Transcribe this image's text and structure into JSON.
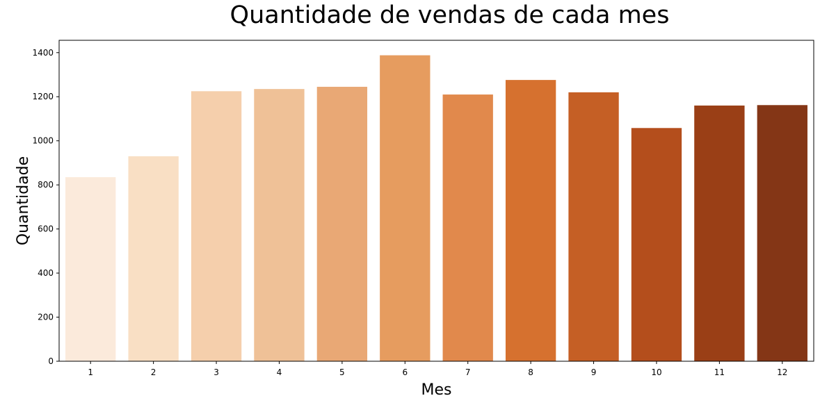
{
  "chart_data": {
    "type": "bar",
    "title": "Quantidade de vendas de cada mes",
    "xlabel": "Mes",
    "ylabel": "Quantidade",
    "categories": [
      "1",
      "2",
      "3",
      "4",
      "5",
      "6",
      "7",
      "8",
      "9",
      "10",
      "11",
      "12"
    ],
    "values": [
      835,
      930,
      1225,
      1235,
      1245,
      1388,
      1210,
      1276,
      1220,
      1058,
      1160,
      1162
    ],
    "ylim": [
      0,
      1456
    ],
    "yticks": [
      0,
      200,
      400,
      600,
      800,
      1000,
      1200,
      1400
    ],
    "grid": false,
    "legend": "none",
    "colors": [
      "#fbeadb",
      "#f9dfc4",
      "#f5cfac",
      "#efc197",
      "#e9a875",
      "#e69c5f",
      "#e1894c",
      "#d6712f",
      "#c55f25",
      "#b44e1c",
      "#9a3f16",
      "#843616"
    ]
  }
}
